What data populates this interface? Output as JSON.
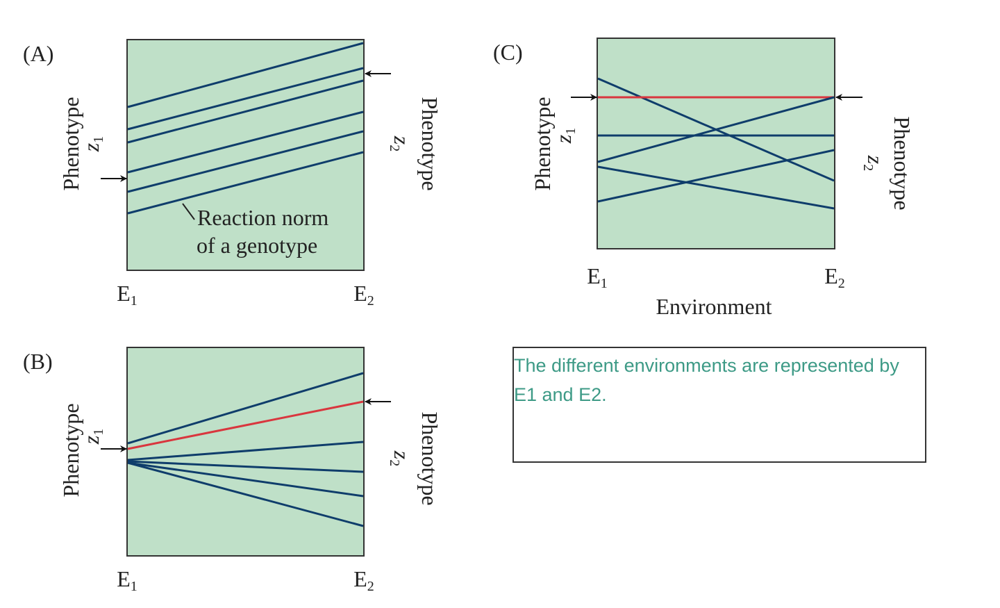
{
  "colors": {
    "plot_bg": "#bfe0c8",
    "norm_line": "#0f3d6b",
    "highlight_line": "#d9363e",
    "note_text": "#3d9a86"
  },
  "panels": [
    {
      "id": "A",
      "label": "(A)",
      "y_left": "Phenotype",
      "z_left": "z",
      "z_left_sub": "1",
      "y_right": "Phenotype",
      "z_right": "z",
      "z_right_sub": "2",
      "e1": "E",
      "e1_sub": "1",
      "e2": "E",
      "e2_sub": "2",
      "annotation_line1": "Reaction norm",
      "annotation_line2": "of a genotype"
    },
    {
      "id": "B",
      "label": "(B)",
      "y_left": "Phenotype",
      "z_left": "z",
      "z_left_sub": "1",
      "y_right": "Phenotype",
      "z_right": "z",
      "z_right_sub": "2",
      "e1": "E",
      "e1_sub": "1",
      "e2": "E",
      "e2_sub": "2"
    },
    {
      "id": "C",
      "label": "(C)",
      "y_left": "Phenotype",
      "z_left": "z",
      "z_left_sub": "1",
      "y_right": "Phenotype",
      "z_right": "z",
      "z_right_sub": "2",
      "e1": "E",
      "e1_sub": "1",
      "e2": "E",
      "e2_sub": "2",
      "xlabel": "Environment"
    }
  ],
  "note": {
    "text": "The different environments are represented by E1 and E2."
  }
}
